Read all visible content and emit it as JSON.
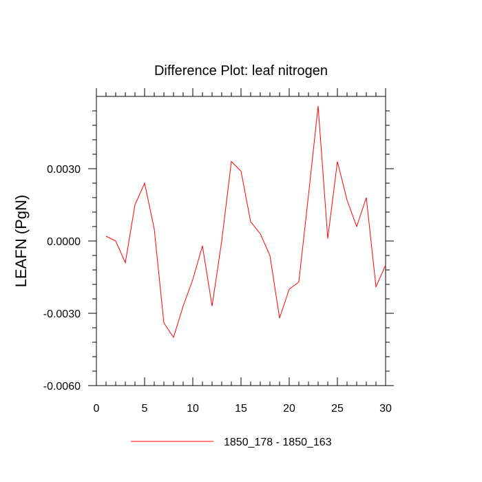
{
  "chart_data": {
    "type": "line",
    "title": "Difference Plot: leaf nitrogen",
    "xlabel": "",
    "ylabel": "LEAFN  (PgN)",
    "xlim": [
      0,
      30
    ],
    "ylim": [
      -0.006,
      0.006
    ],
    "x_ticks": [
      0,
      5,
      10,
      15,
      20,
      25,
      30
    ],
    "x_tick_labels": [
      "0",
      "5",
      "10",
      "15",
      "20",
      "25",
      "30"
    ],
    "y_ticks": [
      -0.006,
      -0.003,
      0.0,
      0.003
    ],
    "y_tick_labels": [
      "-0.0060",
      "-0.0030",
      "0.0000",
      "0.0030"
    ],
    "grid": false,
    "legend_position": "bottom",
    "series": [
      {
        "name": "1850_178 - 1850_163",
        "color": "#ff0000",
        "x": [
          1,
          2,
          3,
          4,
          5,
          6,
          7,
          8,
          9,
          10,
          11,
          12,
          13,
          14,
          15,
          16,
          17,
          18,
          19,
          20,
          21,
          22,
          23,
          24,
          25,
          26,
          27,
          28,
          29,
          30
        ],
        "y": [
          0.0002,
          0.0,
          -0.0009,
          0.0015,
          0.0024,
          0.0005,
          -0.0034,
          -0.004,
          -0.0027,
          -0.0016,
          -0.0002,
          -0.0027,
          0.0,
          0.0033,
          0.0029,
          0.0008,
          0.0003,
          -0.0006,
          -0.0032,
          -0.002,
          -0.0017,
          0.0019,
          0.0056,
          0.0001,
          0.0033,
          0.0017,
          0.0006,
          0.0018,
          -0.0019,
          -0.001
        ]
      }
    ]
  }
}
